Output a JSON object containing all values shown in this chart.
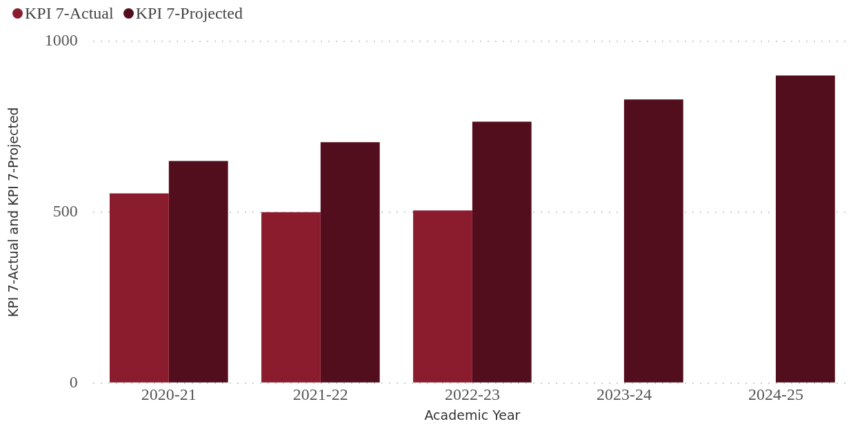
{
  "chart_data": {
    "type": "bar",
    "xlabel": "Academic Year",
    "ylabel": "KPI 7-Actual and KPI 7-Projected",
    "categories": [
      "2020-21",
      "2021-22",
      "2022-23",
      "2023-24",
      "2024-25"
    ],
    "series": [
      {
        "name": "KPI 7-Actual",
        "color": "#8b1c2e",
        "values": [
          555,
          500,
          505,
          null,
          null
        ]
      },
      {
        "name": "KPI 7-Projected",
        "color": "#520e1d",
        "values": [
          650,
          705,
          765,
          830,
          900
        ]
      }
    ],
    "ylim": [
      0,
      1000
    ],
    "yticks": [
      0,
      500,
      1000
    ],
    "grid": "y",
    "legend": "top left"
  }
}
